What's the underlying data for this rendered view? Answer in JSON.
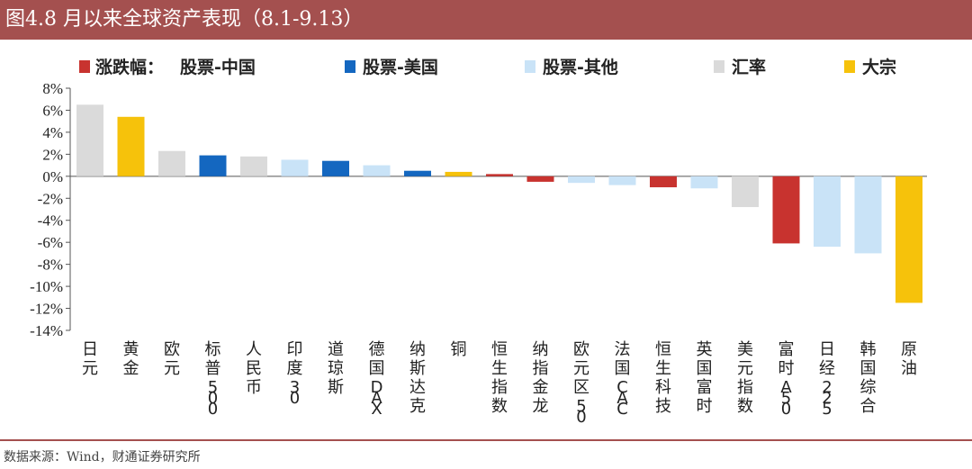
{
  "header": {
    "title": "图4.8 月以来全球资产表现（8.1-9.13）"
  },
  "footer": {
    "source": "数据来源：Wind，财通证券研究所"
  },
  "colors": {
    "header_bg": "#a4504f",
    "china_equity": "#c8332f",
    "us_equity": "#1467c0",
    "other_equity": "#c9e3f7",
    "fx": "#dadada",
    "commodity": "#f6c20b"
  },
  "chart_data": {
    "type": "bar",
    "title": "",
    "xlabel": "",
    "ylabel": "",
    "ylim": [
      -14,
      8
    ],
    "y_ticks": [
      8,
      6,
      4,
      2,
      0,
      -2,
      -4,
      -6,
      -8,
      -10,
      -12,
      -14
    ],
    "y_tick_labels": [
      "8%",
      "6%",
      "4%",
      "2%",
      "0%",
      "-2%",
      "-4%",
      "-6%",
      "-8%",
      "-10%",
      "-12%",
      "-14%"
    ],
    "grid": false,
    "legend_position": "top",
    "legend_title": "涨跌幅：",
    "legend": [
      {
        "key": "china_equity",
        "label": "股票-中国",
        "color": "#c8332f"
      },
      {
        "key": "us_equity",
        "label": "股票-美国",
        "color": "#1467c0"
      },
      {
        "key": "other_equity",
        "label": "股票-其他",
        "color": "#c9e3f7"
      },
      {
        "key": "fx",
        "label": "汇率",
        "color": "#dadada"
      },
      {
        "key": "commodity",
        "label": "大宗",
        "color": "#f6c20b"
      }
    ],
    "categories": [
      "日元",
      "黄金",
      "欧元",
      "标普500",
      "人民币",
      "印度30",
      "道琼斯",
      "德国DAX",
      "纳斯达克",
      "铜",
      "恒生指数",
      "纳指金龙",
      "欧元区50",
      "法国CAC",
      "恒生科技",
      "英国富时",
      "美元指数",
      "富时A50",
      "日经225",
      "韩国综合",
      "原油"
    ],
    "values": [
      6.5,
      5.4,
      2.3,
      1.9,
      1.8,
      1.5,
      1.4,
      1.0,
      0.5,
      0.4,
      0.2,
      -0.5,
      -0.6,
      -0.8,
      -1.0,
      -1.1,
      -2.8,
      -6.1,
      -6.4,
      -7.0,
      -11.5
    ],
    "groups": [
      "fx",
      "commodity",
      "fx",
      "us_equity",
      "fx",
      "other_equity",
      "us_equity",
      "other_equity",
      "us_equity",
      "commodity",
      "china_equity",
      "china_equity",
      "other_equity",
      "other_equity",
      "china_equity",
      "other_equity",
      "fx",
      "china_equity",
      "other_equity",
      "other_equity",
      "commodity"
    ]
  }
}
